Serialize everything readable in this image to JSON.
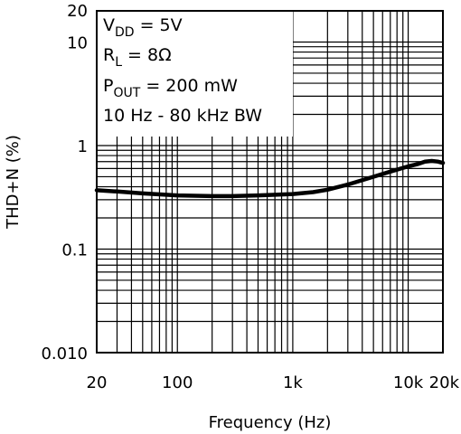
{
  "chart_data": {
    "type": "line",
    "title": "",
    "xlabel": "Frequency (Hz)",
    "ylabel": "THD+N (%)",
    "x_scale": "log",
    "y_scale": "log",
    "xlim": [
      20,
      20000
    ],
    "ylim": [
      0.01,
      20
    ],
    "grid": true,
    "x_ticks": [
      {
        "value": 20,
        "label": "20"
      },
      {
        "value": 100,
        "label": "100"
      },
      {
        "value": 1000,
        "label": "1k"
      },
      {
        "value": 10000,
        "label": "10k"
      },
      {
        "value": 20000,
        "label": "20k"
      }
    ],
    "y_ticks": [
      {
        "value": 0.01,
        "label": "0.010"
      },
      {
        "value": 0.1,
        "label": "0.1"
      },
      {
        "value": 1,
        "label": "1"
      },
      {
        "value": 10,
        "label": "10"
      },
      {
        "value": 20,
        "label": "20"
      }
    ],
    "annotations": [
      {
        "main": "V",
        "sub": "DD",
        "rest": " = 5V"
      },
      {
        "main": "R",
        "sub": "L",
        "rest": " = 8Ω"
      },
      {
        "main": "P",
        "sub": "OUT",
        "rest": " = 200 mW"
      },
      {
        "main": "10 Hz - 80 kHz BW",
        "sub": "",
        "rest": ""
      }
    ],
    "series": [
      {
        "x": [
          20,
          30,
          50,
          100,
          200,
          300,
          500,
          1000,
          1500,
          2000,
          3000,
          5000,
          7000,
          10000,
          12000,
          14000,
          16000,
          18000,
          20000
        ],
        "y": [
          0.37,
          0.36,
          0.345,
          0.33,
          0.325,
          0.325,
          0.33,
          0.34,
          0.355,
          0.375,
          0.42,
          0.5,
          0.56,
          0.63,
          0.66,
          0.7,
          0.71,
          0.7,
          0.68
        ]
      }
    ]
  }
}
